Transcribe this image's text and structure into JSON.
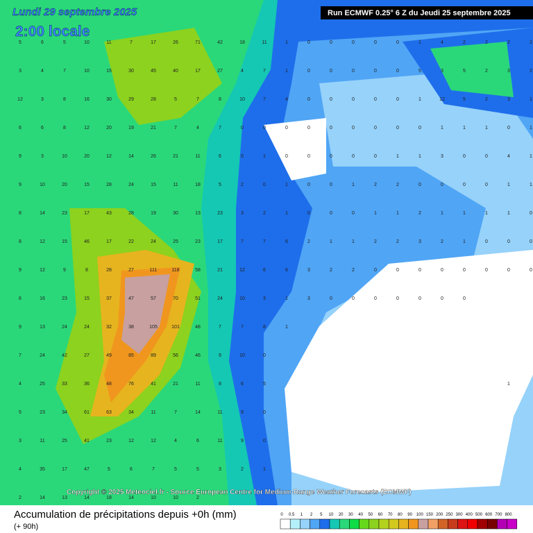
{
  "header": {
    "date": "Lundi 29 septembre 2025",
    "time": "2:00 locale",
    "run": "Run ECMWF 0.25° 6 Z du Jeudi 25 septembre 2025"
  },
  "copyright": "Copyright © 2025 Meteociel.fr - Source European Centre for Medium-Range Weather Forecasts (ECMWF)",
  "legend": {
    "title": "Accumulation de précipitations depuis +0h (mm)",
    "lead": "(+ 90h)",
    "labels": [
      0,
      0.5,
      1,
      2,
      5,
      10,
      20,
      30,
      40,
      50,
      60,
      70,
      80,
      90,
      100,
      150,
      200,
      250,
      300,
      400,
      500,
      600,
      700,
      800
    ],
    "colors": [
      "#ffffff",
      "#b4f0fa",
      "#96d2fa",
      "#50a5f5",
      "#1e6eeb",
      "#14c8b4",
      "#2ad87a",
      "#0fdc46",
      "#66d91a",
      "#8cd21e",
      "#b4d21e",
      "#d2c81e",
      "#e6b41e",
      "#f0961e",
      "#c8a0a0",
      "#f0a064",
      "#d26428",
      "#c83c1e",
      "#dc1414",
      "#f00000",
      "#a00000",
      "#780000",
      "#b400b4",
      "#c800c8"
    ]
  },
  "grid_values": [
    [
      5,
      6,
      5,
      10,
      11,
      7,
      17,
      26,
      71,
      42,
      18,
      11,
      1,
      0,
      0,
      0,
      0,
      0,
      1,
      4,
      2,
      2,
      2,
      2
    ],
    [
      3,
      4,
      7,
      10,
      15,
      30,
      45,
      40,
      17,
      27,
      4,
      7,
      1,
      0,
      0,
      0,
      0,
      0,
      5,
      3,
      5,
      2,
      3,
      2
    ],
    [
      12,
      3,
      8,
      16,
      30,
      29,
      28,
      5,
      7,
      8,
      10,
      7,
      4,
      0,
      0,
      0,
      0,
      0,
      1,
      12,
      5,
      2,
      3,
      1
    ],
    [
      6,
      6,
      8,
      12,
      20,
      19,
      21,
      7,
      4,
      7,
      0,
      0,
      0,
      0,
      0,
      0,
      0,
      0,
      0,
      1,
      1,
      1,
      0,
      1
    ],
    [
      9,
      3,
      10,
      20,
      12,
      14,
      26,
      21,
      11,
      6,
      0,
      1,
      0,
      0,
      0,
      0,
      0,
      1,
      1,
      3,
      0,
      0,
      4,
      1
    ],
    [
      9,
      10,
      20,
      15,
      28,
      24,
      15,
      11,
      18,
      5,
      2,
      0,
      1,
      0,
      0,
      1,
      2,
      2,
      0,
      0,
      0,
      0,
      1,
      1
    ],
    [
      8,
      14,
      23,
      17,
      43,
      28,
      19,
      30,
      13,
      23,
      3,
      2,
      1,
      0,
      0,
      0,
      1,
      1,
      2,
      1,
      1,
      1,
      1,
      0
    ],
    [
      8,
      12,
      15,
      46,
      17,
      22,
      24,
      25,
      23,
      17,
      7,
      7,
      6,
      2,
      1,
      1,
      2,
      2,
      3,
      2,
      1,
      0,
      0,
      0
    ],
    [
      9,
      12,
      9,
      8,
      28,
      27,
      111,
      118,
      58,
      21,
      12,
      6,
      6,
      3,
      2,
      2,
      0,
      0,
      0,
      0,
      0,
      0,
      0,
      0
    ],
    [
      6,
      16,
      23,
      15,
      37,
      47,
      57,
      70,
      51,
      24,
      10,
      3,
      1,
      3,
      0,
      0,
      0,
      0,
      0,
      0,
      0,
      null,
      null,
      null
    ],
    [
      9,
      13,
      24,
      24,
      32,
      38,
      105,
      101,
      48,
      7,
      7,
      8,
      1,
      null,
      null,
      null,
      null,
      null,
      null,
      null,
      null,
      null,
      null,
      null
    ],
    [
      7,
      24,
      42,
      27,
      49,
      85,
      89,
      56,
      46,
      9,
      10,
      0,
      null,
      null,
      null,
      null,
      null,
      null,
      null,
      null,
      null,
      null,
      null,
      null
    ],
    [
      4,
      25,
      33,
      36,
      48,
      76,
      41,
      21,
      11,
      8,
      6,
      5,
      null,
      null,
      null,
      null,
      null,
      null,
      null,
      null,
      null,
      null,
      1,
      null
    ],
    [
      5,
      23,
      34,
      61,
      63,
      34,
      11,
      7,
      14,
      11,
      9,
      0,
      null,
      null,
      null,
      null,
      null,
      null,
      null,
      null,
      null,
      null,
      null,
      null
    ],
    [
      3,
      11,
      25,
      41,
      23,
      12,
      12,
      4,
      6,
      11,
      9,
      0,
      null,
      null,
      null,
      null,
      null,
      null,
      null,
      null,
      null,
      null,
      null,
      null
    ],
    [
      4,
      35,
      17,
      47,
      5,
      6,
      7,
      5,
      5,
      3,
      2,
      1,
      null,
      null,
      null,
      null,
      null,
      null,
      null,
      null,
      null,
      null,
      null,
      null
    ],
    [
      2,
      14,
      13,
      14,
      18,
      14,
      10,
      10,
      2,
      null,
      null,
      null,
      null,
      null,
      null,
      null,
      null,
      null,
      null,
      null,
      null,
      null,
      null,
      null
    ]
  ]
}
